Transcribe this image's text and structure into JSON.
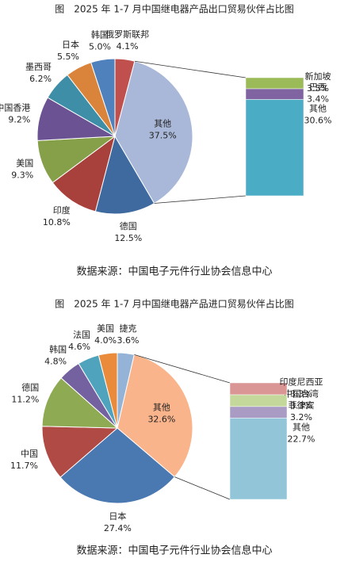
{
  "chart_data": [
    {
      "type": "pie",
      "title": "图　2025 年 1-7 月中国继电器产品出口贸易伙伴占比图",
      "source": "数据来源：中国电子元件行业协会信息中心",
      "categories": [
        "俄罗斯联邦",
        "其他",
        "德国",
        "印度",
        "美国",
        "中国香港",
        "墨西哥",
        "日本",
        "韩国"
      ],
      "values": [
        4.1,
        37.5,
        12.5,
        10.8,
        9.3,
        9.2,
        6.2,
        5.5,
        5.0
      ],
      "value_labels": [
        "4.1%",
        "37.5%",
        "12.5%",
        "10.8%",
        "9.3%",
        "9.2%",
        "6.2%",
        "5.5%",
        "5.0%"
      ],
      "colors": [
        "#c0504d",
        "#a9b8d8",
        "#3f6aa0",
        "#a8403c",
        "#86a04a",
        "#6b5292",
        "#3d8ea6",
        "#d9843a",
        "#4f81bd"
      ],
      "breakdown": {
        "categories": [
          "其他",
          "巴西",
          "新加坡"
        ],
        "values": [
          30.6,
          3.4,
          3.5
        ],
        "value_labels": [
          "30.6%",
          "3.4%",
          "3.5%"
        ],
        "colors": [
          "#4bacc6",
          "#8064a2",
          "#9bbb59"
        ]
      }
    },
    {
      "type": "pie",
      "title": "图　2025 年 1-7 月中国继电器产品进口贸易伙伴占比图",
      "source": "数据来源：中国电子元件行业协会信息中心",
      "categories": [
        "捷克",
        "其他",
        "日本",
        "中国",
        "德国",
        "韩国",
        "法国",
        "美国"
      ],
      "values": [
        3.6,
        32.6,
        27.4,
        11.7,
        11.2,
        4.8,
        4.6,
        4.0
      ],
      "value_labels": [
        "3.6%",
        "32.6%",
        "27.4%",
        "11.7%",
        "11.2%",
        "4.8%",
        "4.6%",
        "4.0%"
      ],
      "colors": [
        "#95b3d7",
        "#fab48c",
        "#4a78b0",
        "#b04a45",
        "#8eaa52",
        "#7361a0",
        "#4fa3bd",
        "#e98b3b"
      ],
      "breakdown": {
        "categories": [
          "其他",
          "菲律宾",
          "中国台湾",
          "印度尼西亚"
        ],
        "values": [
          22.7,
          3.2,
          3.3,
          3.3
        ],
        "value_labels": [
          "22.7%",
          "3.2%",
          "3.3%",
          "3.3%"
        ],
        "colors": [
          "#92c5d8",
          "#a99bc4",
          "#c4d89c",
          "#d99694"
        ]
      }
    }
  ]
}
